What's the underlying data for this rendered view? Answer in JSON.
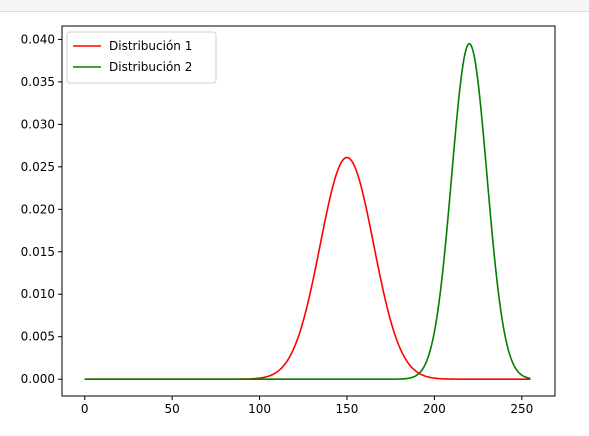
{
  "chart_data": {
    "type": "line",
    "title": "",
    "xlabel": "",
    "ylabel": "",
    "xlim": [
      -13,
      269
    ],
    "ylim": [
      -0.00198,
      0.04158
    ],
    "x_ticks": [
      0,
      50,
      100,
      150,
      200,
      250
    ],
    "x_tick_labels": [
      "0",
      "50",
      "100",
      "150",
      "200",
      "250"
    ],
    "y_ticks": [
      0.0,
      0.005,
      0.01,
      0.015,
      0.02,
      0.025,
      0.03,
      0.035,
      0.04
    ],
    "y_tick_labels": [
      "0.000",
      "0.005",
      "0.010",
      "0.015",
      "0.020",
      "0.025",
      "0.030",
      "0.035",
      "0.040"
    ],
    "grid": false,
    "legend": {
      "position": "top-left"
    },
    "x_range": [
      0,
      255
    ],
    "series": [
      {
        "name": "Distribución 1",
        "color": "#ff0000",
        "distribution": "normal",
        "mean": 150,
        "std": 15.3,
        "peak": 0.0261
      },
      {
        "name": "Distribución 2",
        "color": "#008000",
        "distribution": "normal",
        "mean": 220,
        "std": 10.1,
        "peak": 0.0395
      }
    ]
  }
}
